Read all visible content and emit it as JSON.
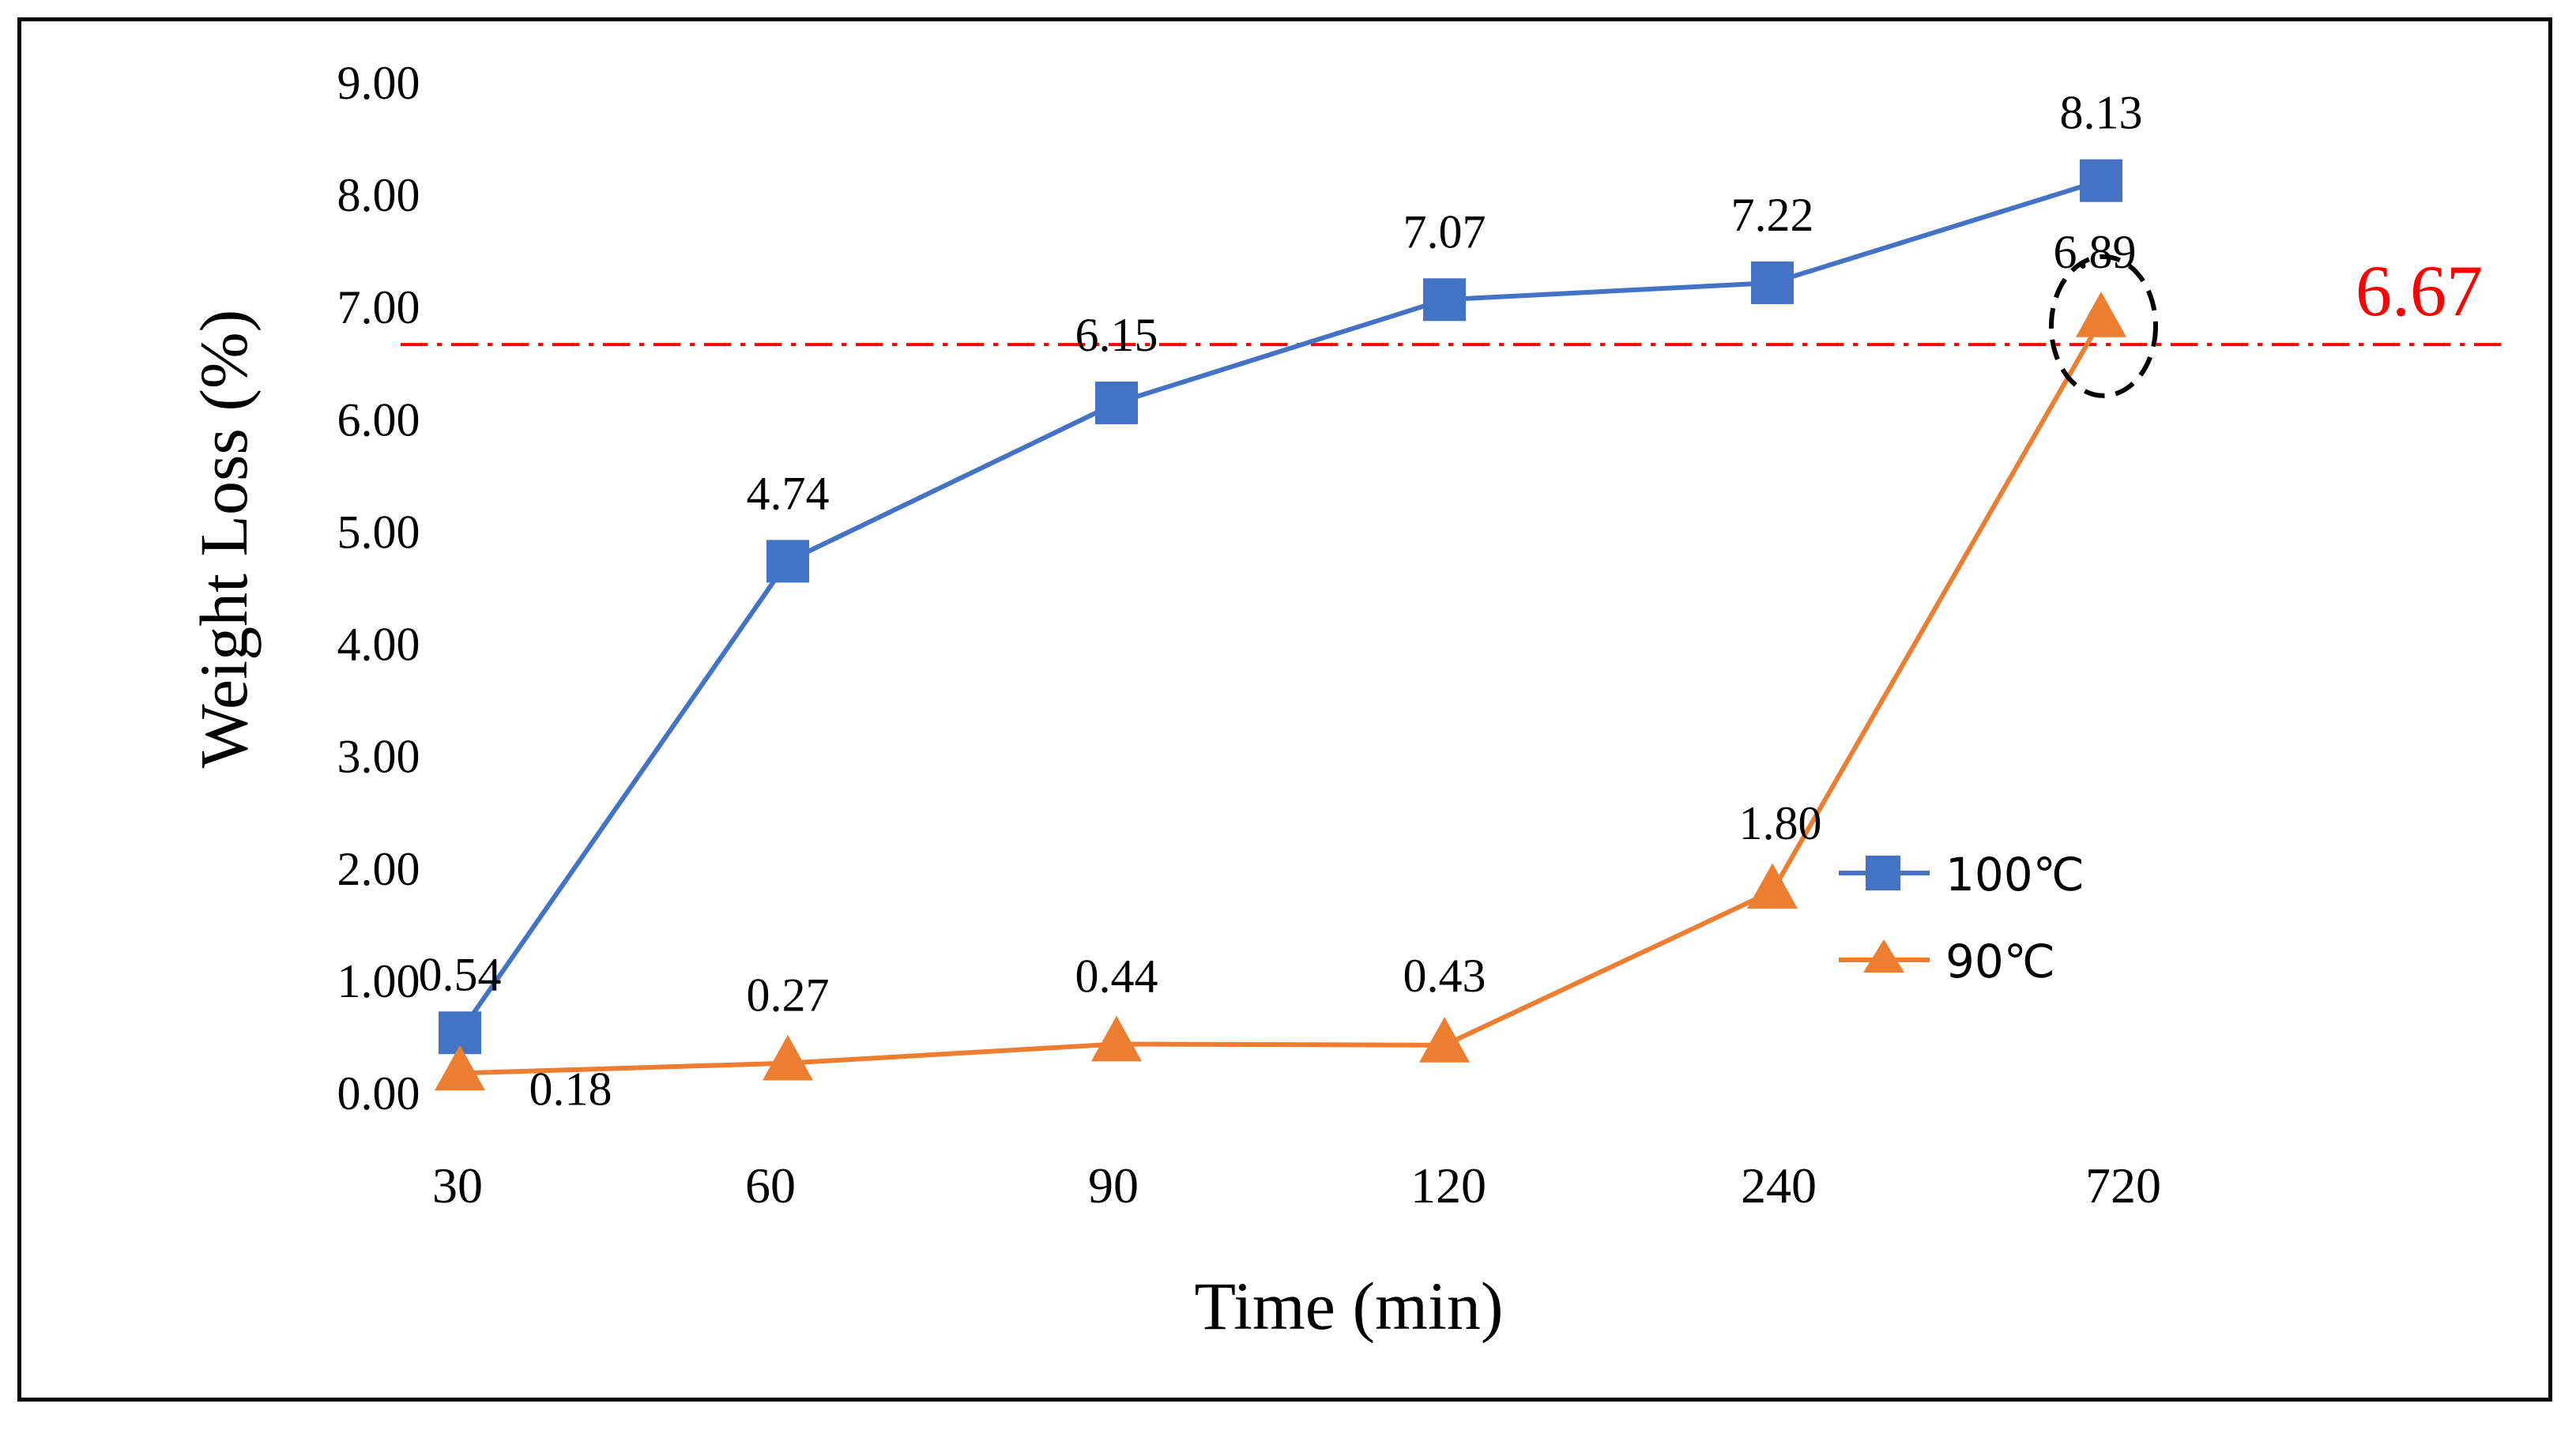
{
  "chart_data": {
    "type": "line",
    "title": "",
    "xlabel": "Time (min)",
    "ylabel": "Weight Loss (%)",
    "categories": [
      "30",
      "60",
      "90",
      "120",
      "240",
      "720"
    ],
    "ylim": [
      0,
      9
    ],
    "yticks": [
      "0.00",
      "1.00",
      "2.00",
      "3.00",
      "4.00",
      "5.00",
      "6.00",
      "7.00",
      "8.00",
      "9.00"
    ],
    "grid": false,
    "legend_position": "bottom-right",
    "series": [
      {
        "name": "100℃",
        "color": "#4472C4",
        "marker": "square",
        "values": [
          0.54,
          4.74,
          6.15,
          7.07,
          7.22,
          8.13
        ],
        "labels": [
          "0.54",
          "4.74",
          "6.15",
          "7.07",
          "7.22",
          "8.13"
        ]
      },
      {
        "name": "90℃",
        "color": "#ED7D31",
        "marker": "triangle",
        "values": [
          0.18,
          0.27,
          0.44,
          0.43,
          1.8,
          6.89
        ],
        "labels": [
          "0.18",
          "0.27",
          "0.44",
          "0.43",
          "1.80",
          "6.89"
        ]
      }
    ],
    "reference_line": {
      "value": 6.67,
      "label": "6.67",
      "color": "#FF0000",
      "style": "dash-dot"
    },
    "highlight": {
      "series": 1,
      "point": 5,
      "style": "dashed-circle",
      "color": "#000000"
    }
  }
}
